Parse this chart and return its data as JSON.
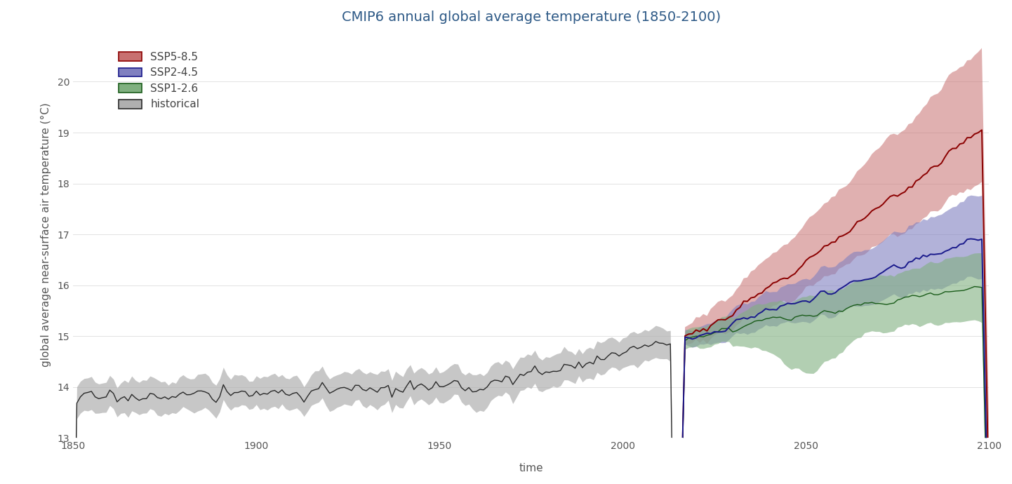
{
  "title": "CMIP6 annual global average temperature (1850-2100)",
  "xlabel": "time",
  "ylabel": "global average near-surface air temperature (°C)",
  "xlim": [
    1850,
    2100
  ],
  "ylim": [
    13,
    21
  ],
  "yticks": [
    13,
    14,
    15,
    16,
    17,
    18,
    19,
    20
  ],
  "xticks": [
    1850,
    1900,
    1950,
    2000,
    2050,
    2100
  ],
  "hist_line_color": "#2a2a2a",
  "hist_fill_color": "#b0b0b0",
  "ssp585_line_color": "#8b0000",
  "ssp585_fill_color": "#c87070",
  "ssp245_line_color": "#1a1a8c",
  "ssp245_fill_color": "#8080c0",
  "ssp126_line_color": "#1a5c1a",
  "ssp126_fill_color": "#80b080",
  "title_color": "#2d5986",
  "title_fontsize": 14,
  "label_fontsize": 11,
  "tick_fontsize": 10,
  "background_color": "#ffffff",
  "fig_facecolor": "#ffffff",
  "hist_alpha": 0.7,
  "ssp585_alpha": 0.55,
  "ssp245_alpha": 0.6,
  "ssp126_alpha": 0.6
}
